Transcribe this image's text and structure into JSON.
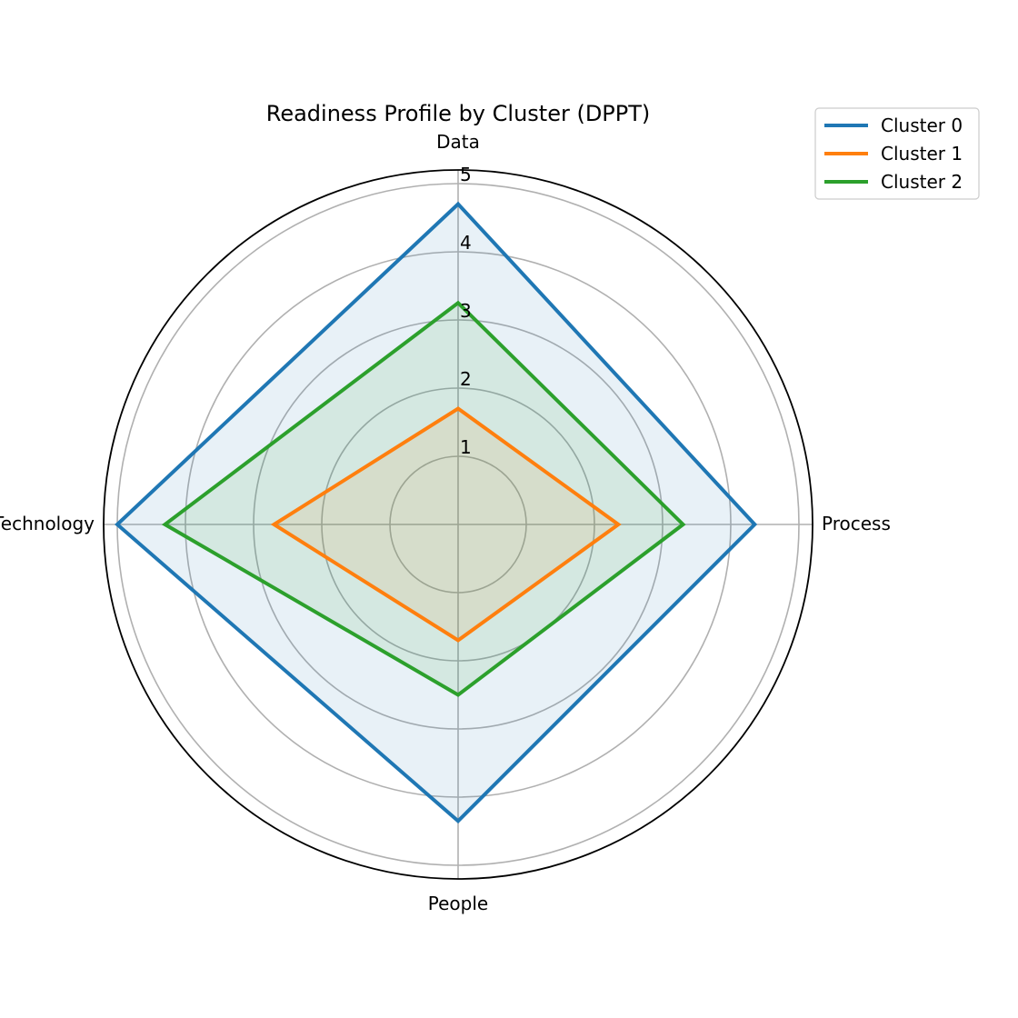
{
  "chart_data": {
    "type": "radar",
    "title": "Readiness Profile by Cluster (DPPT)",
    "axes": [
      "Data",
      "Process",
      "People",
      "Technology"
    ],
    "rlim": [
      0,
      5.2
    ],
    "rticks": [
      1,
      2,
      3,
      4,
      5
    ],
    "grid": true,
    "legend_position": "top-right",
    "series": [
      {
        "name": "Cluster 0",
        "color": "#1f77b4",
        "values": [
          4.7,
          4.35,
          4.35,
          5.0
        ]
      },
      {
        "name": "Cluster 1",
        "color": "#ff7f0e",
        "values": [
          1.7,
          2.35,
          1.7,
          2.7
        ]
      },
      {
        "name": "Cluster 2",
        "color": "#2ca02c",
        "values": [
          3.25,
          3.3,
          2.5,
          4.3
        ]
      }
    ]
  }
}
